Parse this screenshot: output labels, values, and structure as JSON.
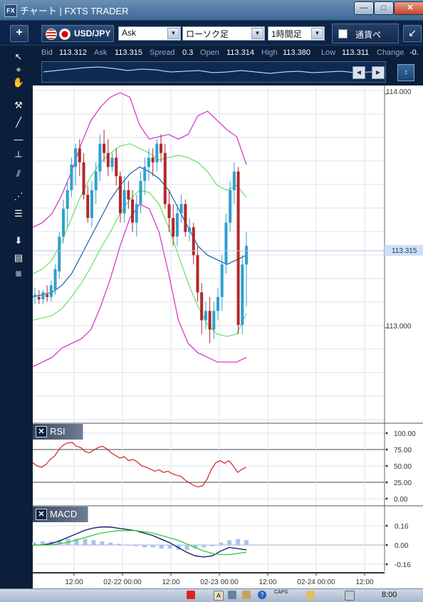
{
  "window": {
    "app_icon": "FX",
    "title": "チャート | FXTS TRADER",
    "buttons": {
      "minimize": "—",
      "maximize": "□",
      "close": "✕"
    }
  },
  "toolbar": {
    "add_icon": "+",
    "symbol": "USD/JPY",
    "price_side": "Ask",
    "chart_type": "ローソク足",
    "timeframe": "1時間足",
    "currency_label": "通貨ペ",
    "shrink_icon": "↙"
  },
  "quote": {
    "bid_label": "Bid",
    "bid": "113.312",
    "ask_label": "Ask",
    "ask": "113.315",
    "spread_label": "Spread",
    "spread": "0.3",
    "open_label": "Open",
    "open": "113.314",
    "high_label": "High",
    "high": "113.380",
    "low_label": "Low",
    "low": "113.311",
    "change_label": "Change",
    "change": "-0."
  },
  "price_axis": {
    "ticks": [
      "114.000",
      "113.000"
    ],
    "current": "113.315"
  },
  "rsi": {
    "name": "RSI",
    "ticks": [
      "100.00",
      "75.00",
      "50.00",
      "25.00",
      "0.00"
    ]
  },
  "macd": {
    "name": "MACD",
    "ticks": [
      "0.16",
      "0.00",
      "-0.16"
    ]
  },
  "time_axis": [
    "12:00",
    "02-22 00:00",
    "12:00",
    "02-23 00:00",
    "12:00",
    "02-24 00:00",
    "12:00"
  ],
  "taskbar": {
    "caps": "CAPS",
    "clock": "8:00"
  },
  "colors": {
    "up": "#2f9fd0",
    "down": "#b0282a",
    "bb_outer": "#d62dc4",
    "bb_inner": "#66e066",
    "ma": "#1a5fb0",
    "rsi": "#d62020",
    "macd": "#101070",
    "signal": "#33cc33",
    "hist": "#a8c4ec"
  },
  "chart_data": {
    "type": "candlestick",
    "ylim": [
      112.6,
      114.05
    ],
    "yticks": [
      114.0,
      113.0
    ],
    "candles": [
      {
        "o": 113.12,
        "h": 113.16,
        "l": 113.09,
        "c": 113.13
      },
      {
        "o": 113.12,
        "h": 113.15,
        "l": 113.09,
        "c": 113.11
      },
      {
        "o": 113.11,
        "h": 113.15,
        "l": 113.09,
        "c": 113.14
      },
      {
        "o": 113.13,
        "h": 113.17,
        "l": 113.1,
        "c": 113.12
      },
      {
        "o": 113.12,
        "h": 113.19,
        "l": 113.1,
        "c": 113.17
      },
      {
        "o": 113.15,
        "h": 113.26,
        "l": 113.13,
        "c": 113.24
      },
      {
        "o": 113.23,
        "h": 113.4,
        "l": 113.2,
        "c": 113.38
      },
      {
        "o": 113.38,
        "h": 113.54,
        "l": 113.35,
        "c": 113.5
      },
      {
        "o": 113.5,
        "h": 113.62,
        "l": 113.42,
        "c": 113.58
      },
      {
        "o": 113.58,
        "h": 113.72,
        "l": 113.55,
        "c": 113.69
      },
      {
        "o": 113.68,
        "h": 113.78,
        "l": 113.6,
        "c": 113.76
      },
      {
        "o": 113.76,
        "h": 113.8,
        "l": 113.64,
        "c": 113.7
      },
      {
        "o": 113.7,
        "h": 113.74,
        "l": 113.54,
        "c": 113.56
      },
      {
        "o": 113.56,
        "h": 113.6,
        "l": 113.44,
        "c": 113.46
      },
      {
        "o": 113.46,
        "h": 113.62,
        "l": 113.42,
        "c": 113.58
      },
      {
        "o": 113.58,
        "h": 113.7,
        "l": 113.52,
        "c": 113.66
      },
      {
        "o": 113.66,
        "h": 113.82,
        "l": 113.62,
        "c": 113.78
      },
      {
        "o": 113.78,
        "h": 113.84,
        "l": 113.7,
        "c": 113.74
      },
      {
        "o": 113.74,
        "h": 113.8,
        "l": 113.64,
        "c": 113.68
      },
      {
        "o": 113.68,
        "h": 113.74,
        "l": 113.66,
        "c": 113.72
      },
      {
        "o": 113.72,
        "h": 113.76,
        "l": 113.6,
        "c": 113.64
      },
      {
        "o": 113.64,
        "h": 113.66,
        "l": 113.44,
        "c": 113.48
      },
      {
        "o": 113.48,
        "h": 113.64,
        "l": 113.44,
        "c": 113.58
      },
      {
        "o": 113.58,
        "h": 113.62,
        "l": 113.5,
        "c": 113.54
      },
      {
        "o": 113.54,
        "h": 113.58,
        "l": 113.4,
        "c": 113.44
      },
      {
        "o": 113.44,
        "h": 113.56,
        "l": 113.38,
        "c": 113.52
      },
      {
        "o": 113.52,
        "h": 113.66,
        "l": 113.48,
        "c": 113.62
      },
      {
        "o": 113.62,
        "h": 113.72,
        "l": 113.56,
        "c": 113.68
      },
      {
        "o": 113.68,
        "h": 113.76,
        "l": 113.62,
        "c": 113.72
      },
      {
        "o": 113.72,
        "h": 113.76,
        "l": 113.64,
        "c": 113.7
      },
      {
        "o": 113.7,
        "h": 113.8,
        "l": 113.66,
        "c": 113.78
      },
      {
        "o": 113.78,
        "h": 113.82,
        "l": 113.7,
        "c": 113.74
      },
      {
        "o": 113.74,
        "h": 113.78,
        "l": 113.5,
        "c": 113.52
      },
      {
        "o": 113.52,
        "h": 113.58,
        "l": 113.4,
        "c": 113.46
      },
      {
        "o": 113.46,
        "h": 113.52,
        "l": 113.34,
        "c": 113.38
      },
      {
        "o": 113.38,
        "h": 113.52,
        "l": 113.34,
        "c": 113.48
      },
      {
        "o": 113.48,
        "h": 113.56,
        "l": 113.44,
        "c": 113.52
      },
      {
        "o": 113.52,
        "h": 113.54,
        "l": 113.38,
        "c": 113.4
      },
      {
        "o": 113.4,
        "h": 113.46,
        "l": 113.36,
        "c": 113.42
      },
      {
        "o": 113.42,
        "h": 113.44,
        "l": 113.26,
        "c": 113.3
      },
      {
        "o": 113.3,
        "h": 113.34,
        "l": 113.1,
        "c": 113.14
      },
      {
        "o": 113.14,
        "h": 113.18,
        "l": 112.96,
        "c": 113.02
      },
      {
        "o": 113.02,
        "h": 113.1,
        "l": 112.98,
        "c": 113.06
      },
      {
        "o": 113.06,
        "h": 113.12,
        "l": 112.92,
        "c": 112.98
      },
      {
        "o": 112.98,
        "h": 113.1,
        "l": 112.94,
        "c": 113.06
      },
      {
        "o": 113.06,
        "h": 113.16,
        "l": 113.02,
        "c": 113.12
      },
      {
        "o": 113.12,
        "h": 113.3,
        "l": 113.06,
        "c": 113.26
      },
      {
        "o": 113.26,
        "h": 113.48,
        "l": 113.22,
        "c": 113.44
      },
      {
        "o": 113.44,
        "h": 113.62,
        "l": 113.4,
        "c": 113.58
      },
      {
        "o": 113.58,
        "h": 113.7,
        "l": 113.52,
        "c": 113.66
      },
      {
        "o": 113.66,
        "h": 113.68,
        "l": 112.96,
        "c": 113.0
      },
      {
        "o": 113.0,
        "h": 113.3,
        "l": 112.96,
        "c": 113.26
      },
      {
        "o": 113.26,
        "h": 113.4,
        "l": 113.08,
        "c": 113.34
      }
    ],
    "bb_upper": [
      113.42,
      113.44,
      113.48,
      113.56,
      113.66,
      113.78,
      113.88,
      113.94,
      113.98,
      114.0,
      113.98,
      113.86,
      113.8,
      113.81,
      113.82,
      113.8,
      113.82,
      113.9,
      113.92,
      113.88,
      113.84,
      113.81,
      113.69
    ],
    "bb_mid_upper": [
      113.22,
      113.24,
      113.28,
      113.36,
      113.46,
      113.56,
      113.64,
      113.7,
      113.74,
      113.77,
      113.78,
      113.76,
      113.74,
      113.71,
      113.72,
      113.73,
      113.72,
      113.7,
      113.66,
      113.6,
      113.58,
      113.6,
      113.55
    ],
    "ma": [
      113.12,
      113.13,
      113.14,
      113.17,
      113.22,
      113.3,
      113.38,
      113.46,
      113.54,
      113.6,
      113.65,
      113.68,
      113.66,
      113.63,
      113.58,
      113.5,
      113.42,
      113.34,
      113.3,
      113.28,
      113.26,
      113.28,
      113.3
    ],
    "bb_mid_lower": [
      113.02,
      113.03,
      113.04,
      113.07,
      113.12,
      113.18,
      113.25,
      113.33,
      113.4,
      113.48,
      113.54,
      113.58,
      113.57,
      113.52,
      113.42,
      113.3,
      113.18,
      113.08,
      113.0,
      112.96,
      112.95,
      112.96,
      113.05
    ],
    "bb_lower": [
      112.82,
      112.84,
      112.86,
      112.9,
      112.92,
      112.94,
      112.98,
      113.08,
      113.2,
      113.34,
      113.46,
      113.52,
      113.5,
      113.4,
      113.22,
      113.02,
      112.92,
      112.88,
      112.86,
      112.84,
      112.84,
      112.84,
      112.86
    ],
    "rsi": [
      55,
      50,
      48,
      52,
      60,
      65,
      75,
      82,
      85,
      86,
      80,
      78,
      72,
      70,
      74,
      78,
      80,
      76,
      70,
      66,
      62,
      64,
      58,
      60,
      56,
      50,
      48,
      45,
      42,
      44,
      40,
      42,
      38,
      36,
      34,
      28,
      24,
      20,
      18,
      20,
      30,
      45,
      55,
      58,
      54,
      58,
      50,
      40,
      45,
      48
    ],
    "macd": [
      0.0,
      0.0,
      0.01,
      0.03,
      0.06,
      0.09,
      0.12,
      0.14,
      0.15,
      0.15,
      0.14,
      0.13,
      0.12,
      0.1,
      0.08,
      0.05,
      0.02,
      -0.02,
      -0.06,
      -0.09,
      -0.1,
      -0.09,
      -0.05,
      -0.02,
      -0.03,
      -0.04
    ],
    "signal": [
      0.0,
      0.0,
      0.0,
      0.01,
      0.02,
      0.04,
      0.06,
      0.08,
      0.1,
      0.11,
      0.12,
      0.12,
      0.12,
      0.11,
      0.1,
      0.08,
      0.06,
      0.04,
      0.01,
      -0.02,
      -0.05,
      -0.07,
      -0.08,
      -0.08,
      -0.07,
      -0.06
    ],
    "hist": [
      0.02,
      0.03,
      0.03,
      0.04,
      0.05,
      0.05,
      0.05,
      0.04,
      0.03,
      0.02,
      0.01,
      0.0,
      -0.01,
      -0.02,
      -0.02,
      -0.03,
      -0.03,
      -0.04,
      -0.04,
      -0.03,
      -0.02,
      -0.01,
      0.02,
      0.04,
      0.05,
      0.04
    ]
  }
}
